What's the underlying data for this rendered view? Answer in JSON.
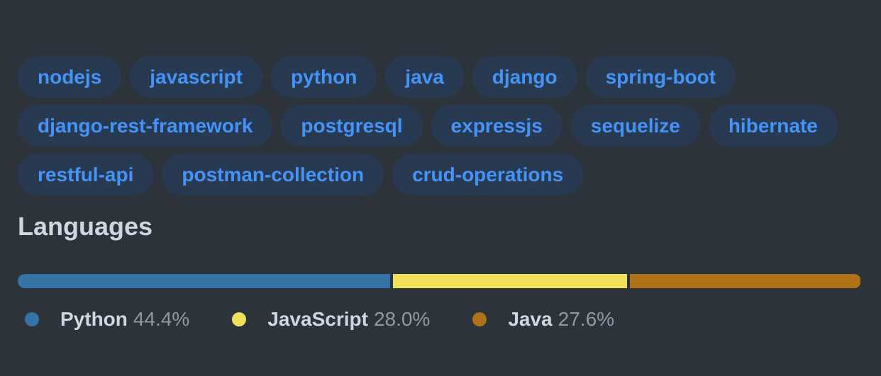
{
  "topics": [
    "nodejs",
    "javascript",
    "python",
    "java",
    "django",
    "spring-boot",
    "django-rest-framework",
    "postgresql",
    "expressjs",
    "sequelize",
    "hibernate",
    "restful-api",
    "postman-collection",
    "crud-operations"
  ],
  "languages": {
    "title": "Languages",
    "items": [
      {
        "name": "Python",
        "percent": "44.4%",
        "value": 44.4,
        "color": "#3572A5"
      },
      {
        "name": "JavaScript",
        "percent": "28.0%",
        "value": 28.0,
        "color": "#f1e05a"
      },
      {
        "name": "Java",
        "percent": "27.6%",
        "value": 27.6,
        "color": "#b07219"
      }
    ]
  }
}
